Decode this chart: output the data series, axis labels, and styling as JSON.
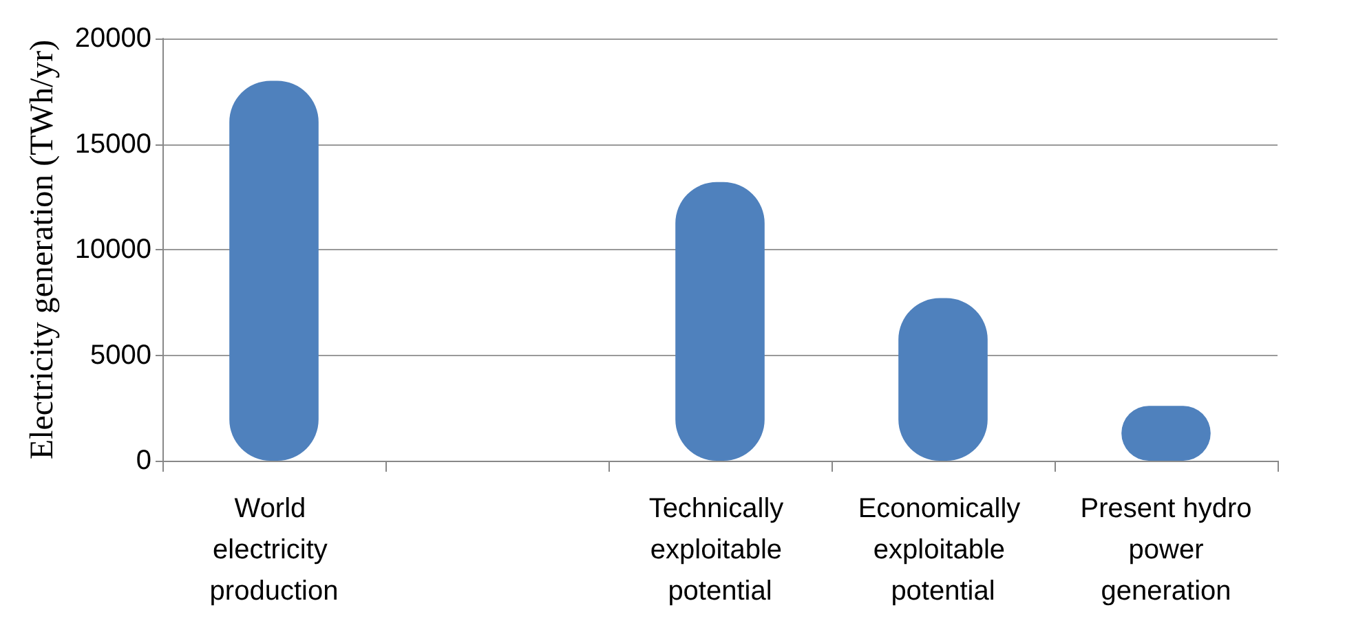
{
  "chart_data": {
    "type": "bar",
    "ylabel": "Electricity generation (TWh/yr)",
    "categories": [
      "World electricity production",
      null,
      "Technically exploitable potential",
      "Economically exploitable potential",
      "Present hydro power generation"
    ],
    "values": [
      18000,
      null,
      13200,
      7700,
      2600
    ],
    "color": "#4f81bd",
    "ylim": [
      0,
      20000
    ],
    "yticks": [
      0,
      5000,
      10000,
      15000,
      20000
    ],
    "grid": "y"
  }
}
